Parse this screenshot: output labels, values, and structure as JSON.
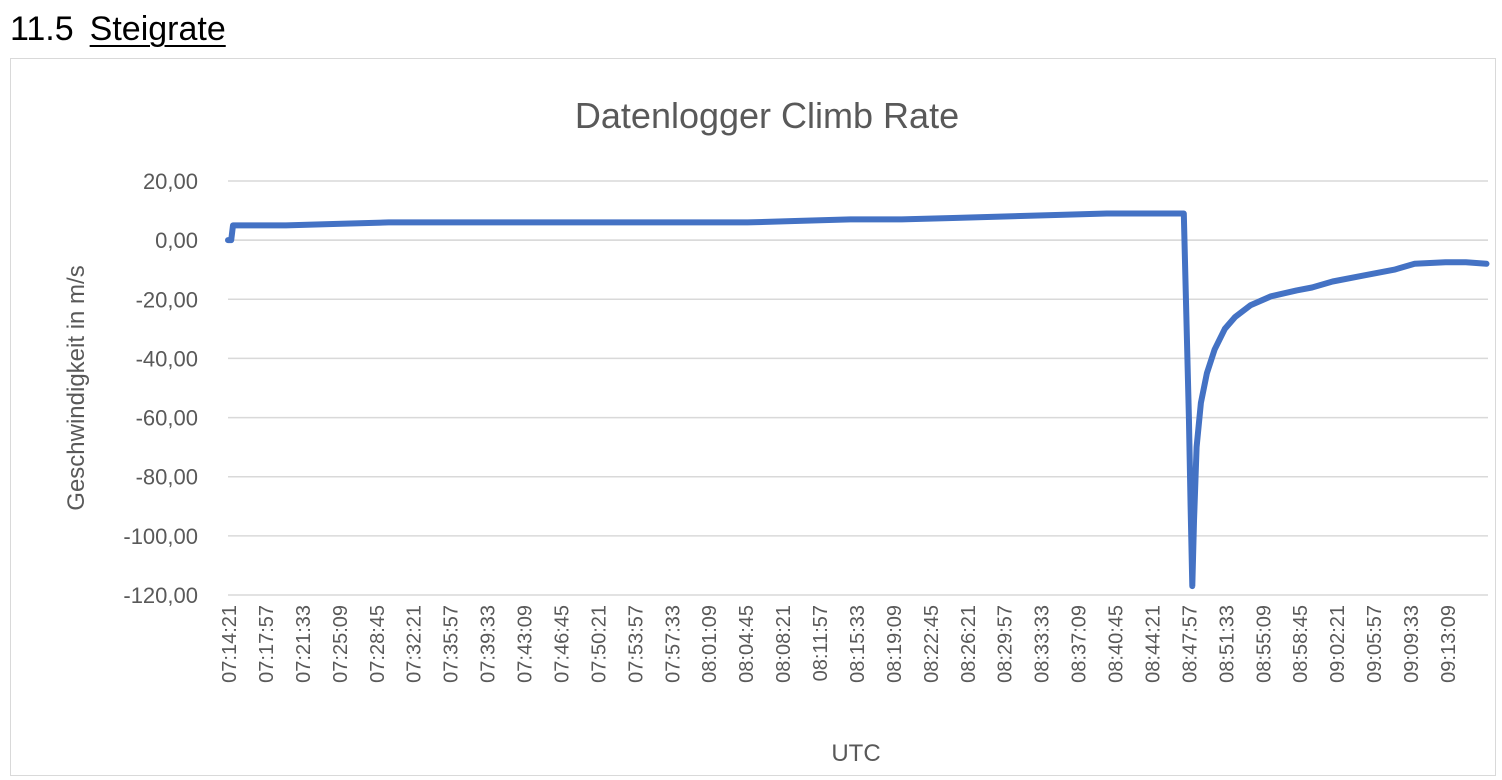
{
  "heading": {
    "number": "11.5",
    "title": "Steigrate"
  },
  "chart_data": {
    "type": "line",
    "title": "Datenlogger Climb Rate",
    "xlabel": "UTC",
    "ylabel": "Geschwindigkeit in m/s",
    "ylim": [
      -120,
      20
    ],
    "yticks": [
      "20,00",
      "0,00",
      "-20,00",
      "-40,00",
      "-60,00",
      "-80,00",
      "-100,00",
      "-120,00"
    ],
    "ytick_values": [
      20,
      0,
      -20,
      -40,
      -60,
      -80,
      -100,
      -120
    ],
    "xticks": [
      "07:14:21",
      "07:17:57",
      "07:21:33",
      "07:25:09",
      "07:28:45",
      "07:32:21",
      "07:35:57",
      "07:39:33",
      "07:43:09",
      "07:46:45",
      "07:50:21",
      "07:53:57",
      "07:57:33",
      "08:01:09",
      "08:04:45",
      "08:08:21",
      "08:11:57",
      "08:15:33",
      "08:19:09",
      "08:22:45",
      "08:26:21",
      "08:29:57",
      "08:33:33",
      "08:37:09",
      "08:40:45",
      "08:44:21",
      "08:47:57",
      "08:51:33",
      "08:55:09",
      "08:58:45",
      "09:02:21",
      "09:05:57",
      "09:09:33",
      "09:13:09"
    ],
    "xlim": [
      "07:14:21",
      "09:17:09"
    ],
    "grid": true,
    "line_color": "#4472c4",
    "series": [
      {
        "x": [
          "07:14:21",
          "07:14:40",
          "07:14:50",
          "07:16:00",
          "07:20:00",
          "07:25:00",
          "07:30:00",
          "07:35:00",
          "07:40:00",
          "07:45:00",
          "07:50:00",
          "07:55:00",
          "08:00:00",
          "08:05:00",
          "08:10:00",
          "08:15:00",
          "08:20:00",
          "08:25:00",
          "08:30:00",
          "08:35:00",
          "08:40:00",
          "08:45:00",
          "08:47:30",
          "08:47:45",
          "08:48:00",
          "08:48:10",
          "08:48:20",
          "08:48:30",
          "08:48:45",
          "08:49:10",
          "08:49:45",
          "08:50:30",
          "08:51:30",
          "08:52:30",
          "08:54:00",
          "08:56:00",
          "08:58:30",
          "09:00:00",
          "09:02:00",
          "09:05:00",
          "09:08:00",
          "09:10:00",
          "09:13:00",
          "09:15:00",
          "09:17:00"
        ],
        "y": [
          0,
          0,
          5,
          5,
          5,
          5.5,
          6,
          6,
          6,
          6,
          6,
          6,
          6,
          6,
          6.5,
          7,
          7,
          7.5,
          8,
          8.5,
          9,
          9,
          9,
          -25,
          -60,
          -90,
          -117,
          -95,
          -70,
          -55,
          -45,
          -37,
          -30,
          -26,
          -22,
          -19,
          -17,
          -16,
          -14,
          -12,
          -10,
          -8,
          -7.5,
          -7.5,
          -8
        ]
      }
    ]
  }
}
